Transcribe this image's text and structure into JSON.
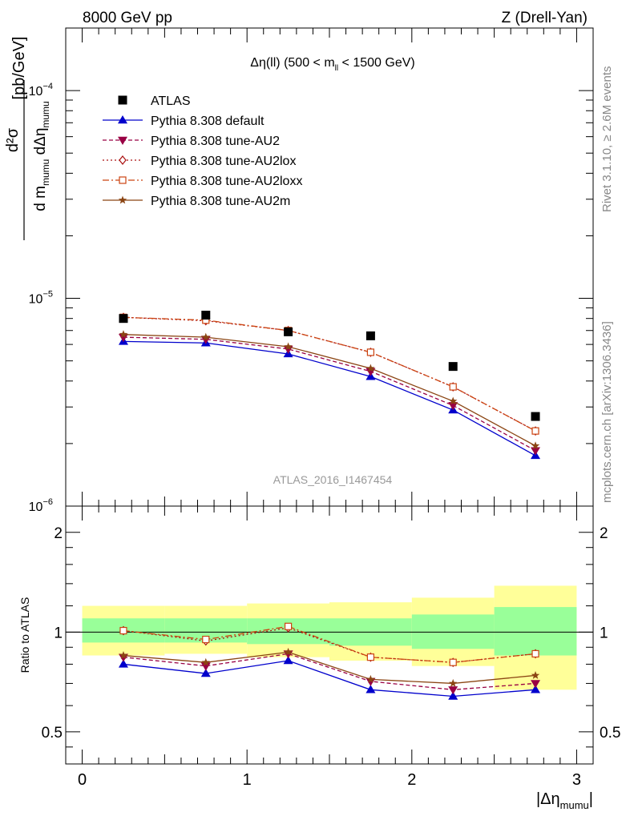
{
  "header": {
    "left": "8000 GeV pp",
    "right": "Z (Drell-Yan)"
  },
  "side_labels": {
    "rivet": "Rivet 3.1.10, ≥ 2.6M events",
    "mcplots": "mcplots.cern.ch [arXiv:1306.3436]"
  },
  "watermark": "ATLAS_2016_I1467454",
  "chart_data": {
    "type": "line",
    "title": "Δη(ll) (500 < m_ll < 1500 GeV)",
    "title_parts": {
      "pre": "Δη(ll) (500 < m",
      "sub": "ll",
      "post": " < 1500 GeV)"
    },
    "ylabel_parts": {
      "num": "d²σ",
      "den_a": "d m",
      "den_sub_a": "mumu",
      "den_b": " dΔη",
      "den_sub_b": "mumu",
      "unit": "[pb/GeV]"
    },
    "xlabel_parts": {
      "pre": "|Δη",
      "sub": "mumu",
      "post": "|"
    },
    "ratio_ylabel": "Ratio to ATLAS",
    "x_range": [
      -0.1,
      3.1
    ],
    "y_range_log": [
      1e-06,
      0.0002
    ],
    "ratio_range": [
      0.4,
      2.4
    ],
    "x_ticks": [
      "0",
      "1",
      "2",
      "3"
    ],
    "y_ticks": [
      {
        "base": "10",
        "exp": "−6"
      },
      {
        "base": "10",
        "exp": "−5"
      },
      {
        "base": "10",
        "exp": "−4"
      }
    ],
    "ratio_ticks": [
      "0.5",
      "1",
      "2"
    ],
    "bins": [
      [
        0,
        0.5
      ],
      [
        0.5,
        1.0
      ],
      [
        1.0,
        1.5
      ],
      [
        1.5,
        2.0
      ],
      [
        2.0,
        2.5
      ],
      [
        2.5,
        3.0
      ]
    ],
    "x": [
      0.25,
      0.75,
      1.25,
      1.75,
      2.25,
      2.75
    ],
    "data": {
      "name": "ATLAS",
      "values": [
        8e-06,
        8.3e-06,
        6.9e-06,
        6.6e-06,
        4.7e-06,
        2.7e-06
      ]
    },
    "band_inner": [
      [
        0.93,
        1.1
      ],
      [
        0.93,
        1.1
      ],
      [
        0.92,
        1.1
      ],
      [
        0.91,
        1.1
      ],
      [
        0.89,
        1.13
      ],
      [
        0.85,
        1.19
      ]
    ],
    "band_outer": [
      [
        0.85,
        1.2
      ],
      [
        0.86,
        1.2
      ],
      [
        0.84,
        1.22
      ],
      [
        0.82,
        1.23
      ],
      [
        0.79,
        1.27
      ],
      [
        0.67,
        1.38
      ]
    ],
    "series": [
      {
        "name": "Pythia 8.308 default",
        "color": "#0000cc",
        "dash": "",
        "marker": "triangle-up",
        "values": [
          6.2e-06,
          6.1e-06,
          5.4e-06,
          4.2e-06,
          2.9e-06,
          1.75e-06
        ],
        "ratio": [
          0.8,
          0.75,
          0.82,
          0.67,
          0.64,
          0.67
        ]
      },
      {
        "name": "Pythia 8.308 tune-AU2",
        "color": "#990044",
        "dash": "5,3",
        "marker": "triangle-down",
        "values": [
          6.5e-06,
          6.35e-06,
          5.7e-06,
          4.45e-06,
          3.05e-06,
          1.85e-06
        ],
        "ratio": [
          0.84,
          0.79,
          0.86,
          0.71,
          0.67,
          0.7
        ]
      },
      {
        "name": "Pythia 8.308 tune-AU2lox",
        "color": "#aa1111",
        "dash": "2,3",
        "marker": "diamond",
        "values": [
          8.1e-06,
          7.8e-06,
          7e-06,
          5.5e-06,
          3.75e-06,
          2.3e-06
        ],
        "ratio": [
          1.01,
          0.94,
          1.03,
          0.84,
          0.81,
          0.86
        ]
      },
      {
        "name": "Pythia 8.308 tune-AU2loxx",
        "color": "#cc4411",
        "dash": "8,3,2,3",
        "marker": "square",
        "values": [
          8.1e-06,
          7.85e-06,
          7e-06,
          5.5e-06,
          3.75e-06,
          2.3e-06
        ],
        "ratio": [
          1.01,
          0.95,
          1.04,
          0.84,
          0.81,
          0.86
        ]
      },
      {
        "name": "Pythia 8.308 tune-AU2m",
        "color": "#8b4513",
        "dash": "",
        "marker": "star",
        "values": [
          6.7e-06,
          6.5e-06,
          5.85e-06,
          4.6e-06,
          3.2e-06,
          1.95e-06
        ],
        "ratio": [
          0.85,
          0.81,
          0.87,
          0.72,
          0.7,
          0.74
        ]
      }
    ],
    "colors": {
      "data": "#000000",
      "band_inner": "#99ff99",
      "band_outer": "#ffff99",
      "watermark": "#999999",
      "side_text": "#888888"
    }
  }
}
